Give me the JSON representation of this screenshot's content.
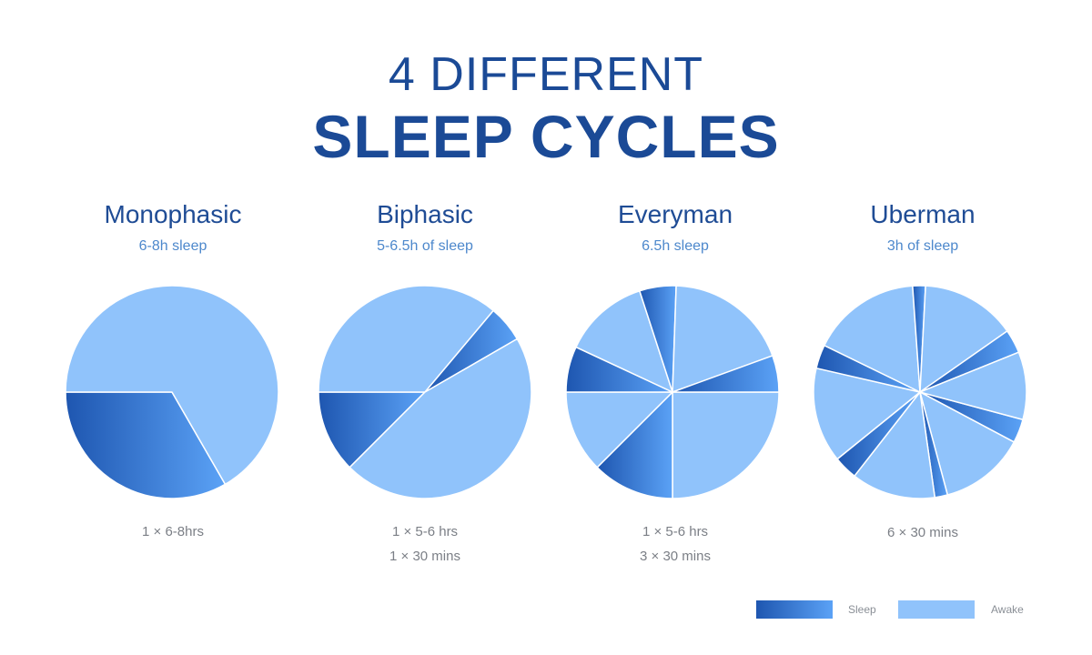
{
  "title_line1": "4 DIFFERENT",
  "title_line2": "SLEEP CYCLES",
  "legend": {
    "sleep": "Sleep",
    "awake": "Awake"
  },
  "colors": {
    "awake": "#90c3fb",
    "sleep_gradient_start": "#1e56b0",
    "sleep_gradient_end": "#5ba2f6",
    "title": "#1b4a96",
    "subtitle": "#4d88cc",
    "note": "#7b7f86"
  },
  "chart_data": [
    {
      "type": "pie",
      "title": "Monophasic",
      "subtitle": "6-8h sleep",
      "notes": [
        "1 × 6-8hrs"
      ],
      "slices": [
        {
          "label": "Sleep",
          "start_deg": 60,
          "end_deg": 180
        },
        {
          "label": "Awake",
          "start_deg": 180,
          "end_deg": 420
        }
      ]
    },
    {
      "type": "pie",
      "title": "Biphasic",
      "subtitle": "5-6.5h of sleep",
      "notes": [
        "1 × 5-6 hrs",
        "1 × 30 mins"
      ],
      "slices": [
        {
          "label": "Sleep",
          "start_deg": 135,
          "end_deg": 180
        },
        {
          "label": "Awake",
          "start_deg": 180,
          "end_deg": 310
        },
        {
          "label": "Sleep",
          "start_deg": 310,
          "end_deg": 330
        },
        {
          "label": "Awake",
          "start_deg": 330,
          "end_deg": 495
        }
      ]
    },
    {
      "type": "pie",
      "title": "Everyman",
      "subtitle": "6.5h sleep",
      "notes": [
        "1 × 5-6 hrs",
        "3 × 30 mins"
      ],
      "slices": [
        {
          "label": "Awake",
          "start_deg": 0,
          "end_deg": 90
        },
        {
          "label": "Sleep",
          "start_deg": 90,
          "end_deg": 135
        },
        {
          "label": "Awake",
          "start_deg": 135,
          "end_deg": 180
        },
        {
          "label": "Sleep",
          "start_deg": 180,
          "end_deg": 205
        },
        {
          "label": "Awake",
          "start_deg": 205,
          "end_deg": 252
        },
        {
          "label": "Sleep",
          "start_deg": 252,
          "end_deg": 272
        },
        {
          "label": "Awake",
          "start_deg": 272,
          "end_deg": 340
        },
        {
          "label": "Sleep",
          "start_deg": 340,
          "end_deg": 360
        }
      ]
    },
    {
      "type": "pie",
      "title": "Uberman",
      "subtitle": "3h of sleep",
      "notes": [
        "6  × 30 mins"
      ],
      "slices": [
        {
          "label": "Sleep",
          "start_deg": 15,
          "end_deg": 28
        },
        {
          "label": "Awake",
          "start_deg": 28,
          "end_deg": 75
        },
        {
          "label": "Sleep",
          "start_deg": 75,
          "end_deg": 82
        },
        {
          "label": "Awake",
          "start_deg": 82,
          "end_deg": 128
        },
        {
          "label": "Sleep",
          "start_deg": 128,
          "end_deg": 141
        },
        {
          "label": "Awake",
          "start_deg": 141,
          "end_deg": 193
        },
        {
          "label": "Sleep",
          "start_deg": 193,
          "end_deg": 206
        },
        {
          "label": "Awake",
          "start_deg": 206,
          "end_deg": 266
        },
        {
          "label": "Sleep",
          "start_deg": 266,
          "end_deg": 273
        },
        {
          "label": "Awake",
          "start_deg": 273,
          "end_deg": 325
        },
        {
          "label": "Sleep",
          "start_deg": 325,
          "end_deg": 338
        },
        {
          "label": "Awake",
          "start_deg": 338,
          "end_deg": 375
        }
      ]
    }
  ]
}
